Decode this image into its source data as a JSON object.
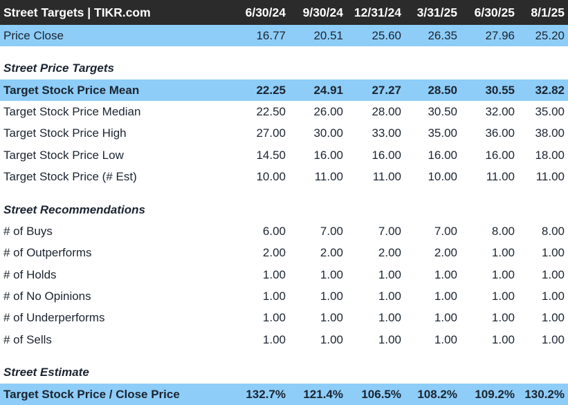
{
  "header": {
    "title": "Street Targets | TIKR.com",
    "dates": [
      "6/30/24",
      "9/30/24",
      "12/31/24",
      "3/31/25",
      "6/30/25",
      "8/1/25"
    ]
  },
  "price_close": {
    "label": "Price Close",
    "values": [
      "16.77",
      "20.51",
      "25.60",
      "26.35",
      "27.96",
      "25.20"
    ]
  },
  "price_targets": {
    "title": "Street Price Targets",
    "rows": [
      {
        "label": "Target Stock Price Mean",
        "values": [
          "22.25",
          "24.91",
          "27.27",
          "28.50",
          "30.55",
          "32.82"
        ]
      },
      {
        "label": "Target Stock Price Median",
        "values": [
          "22.50",
          "26.00",
          "28.00",
          "30.50",
          "32.00",
          "35.00"
        ]
      },
      {
        "label": "Target Stock Price High",
        "values": [
          "27.00",
          "30.00",
          "33.00",
          "35.00",
          "36.00",
          "38.00"
        ]
      },
      {
        "label": "Target Stock Price Low",
        "values": [
          "14.50",
          "16.00",
          "16.00",
          "16.00",
          "16.00",
          "18.00"
        ]
      },
      {
        "label": "Target Stock Price (# Est)",
        "values": [
          "10.00",
          "11.00",
          "11.00",
          "10.00",
          "11.00",
          "11.00"
        ]
      }
    ]
  },
  "recommendations": {
    "title": "Street Recommendations",
    "rows": [
      {
        "label": "# of Buys",
        "values": [
          "6.00",
          "7.00",
          "7.00",
          "7.00",
          "8.00",
          "8.00"
        ]
      },
      {
        "label": "# of Outperforms",
        "values": [
          "2.00",
          "2.00",
          "2.00",
          "2.00",
          "1.00",
          "1.00"
        ]
      },
      {
        "label": "# of Holds",
        "values": [
          "1.00",
          "1.00",
          "1.00",
          "1.00",
          "1.00",
          "1.00"
        ]
      },
      {
        "label": "# of No Opinions",
        "values": [
          "1.00",
          "1.00",
          "1.00",
          "1.00",
          "1.00",
          "1.00"
        ]
      },
      {
        "label": "# of Underperforms",
        "values": [
          "1.00",
          "1.00",
          "1.00",
          "1.00",
          "1.00",
          "1.00"
        ]
      },
      {
        "label": "# of Sells",
        "values": [
          "1.00",
          "1.00",
          "1.00",
          "1.00",
          "1.00",
          "1.00"
        ]
      }
    ]
  },
  "estimate": {
    "title": "Street Estimate",
    "row": {
      "label": "Target Stock Price / Close Price",
      "values": [
        "132.7%",
        "121.4%",
        "106.5%",
        "108.2%",
        "109.2%",
        "130.2%"
      ]
    }
  },
  "colors": {
    "header_bg": "#2b2b2b",
    "highlight": "#8ecdf8",
    "text": "#1b2430"
  }
}
